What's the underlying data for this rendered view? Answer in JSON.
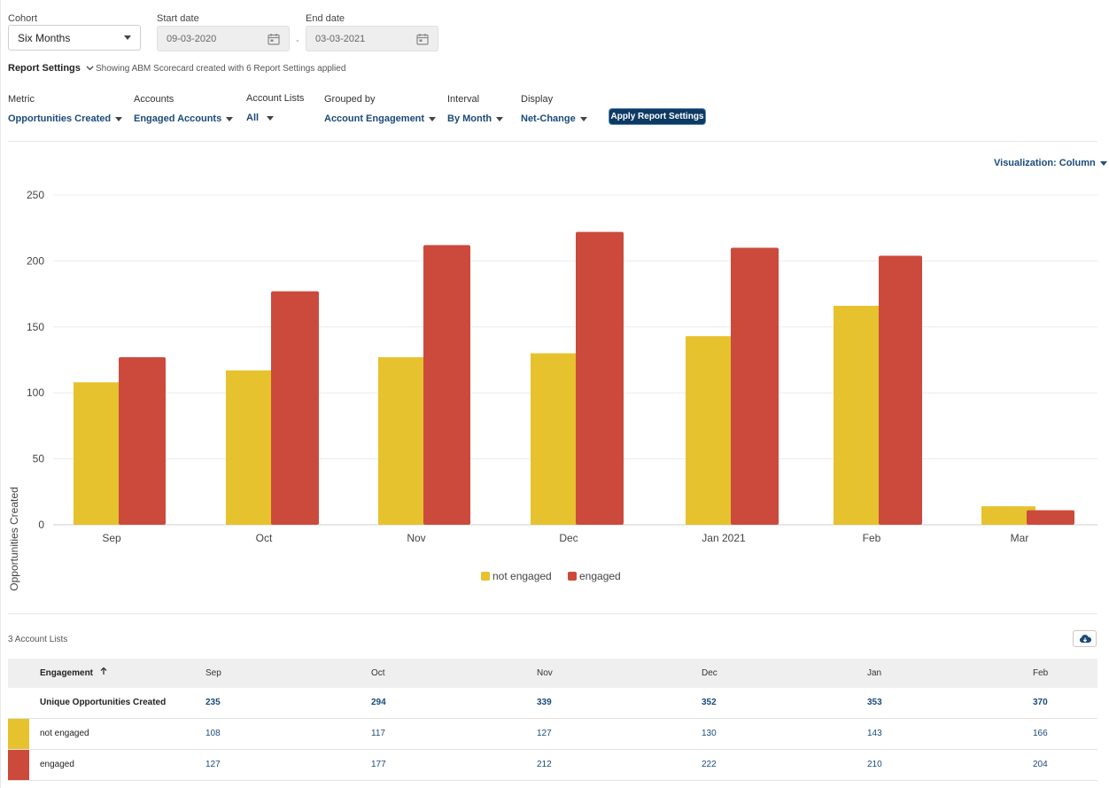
{
  "cohort": {
    "label": "Cohort",
    "value": "Six Months"
  },
  "start_date": {
    "label": "Start date",
    "value": "09-03-2020"
  },
  "end_date": {
    "label": "End date",
    "value": "03-03-2021"
  },
  "date_separator": "-",
  "report_settings": {
    "label": "Report Settings",
    "summary": "Showing ABM Scorecard created with 6 Report Settings applied"
  },
  "filters": {
    "metric": {
      "label": "Metric",
      "value": "Opportunities Created"
    },
    "accounts": {
      "label": "Accounts",
      "value": "Engaged Accounts"
    },
    "account_lists": {
      "label": "Account Lists",
      "value": "All"
    },
    "grouped_by": {
      "label": "Grouped by",
      "value": "Account Engagement"
    },
    "interval": {
      "label": "Interval",
      "value": "By Month"
    },
    "display": {
      "label": "Display",
      "value": "Net-Change"
    },
    "apply_label": "Apply Report Settings"
  },
  "visualization": {
    "label": "Visualization: Column"
  },
  "chart_data": {
    "type": "bar",
    "ylabel": "Opportunities Created",
    "xlabel": "",
    "ylim": [
      0,
      250
    ],
    "yticks": [
      0,
      50,
      100,
      150,
      200,
      250
    ],
    "categories": [
      "Sep",
      "Oct",
      "Nov",
      "Dec",
      "Jan 2021",
      "Feb",
      "Mar"
    ],
    "series": [
      {
        "name": "not engaged",
        "color": "#e6c22e",
        "values": [
          108,
          117,
          127,
          130,
          143,
          166,
          14
        ]
      },
      {
        "name": "engaged",
        "color": "#cc4a3c",
        "values": [
          127,
          177,
          212,
          222,
          210,
          204,
          11
        ]
      }
    ],
    "legend": "bottom-center"
  },
  "table": {
    "count_label": "3 Account Lists",
    "columns": [
      "Engagement",
      "Sep",
      "Oct",
      "Nov",
      "Dec",
      "Jan",
      "Feb"
    ],
    "rows": [
      {
        "label": "Unique Opportunities Created",
        "values": [
          "235",
          "294",
          "339",
          "352",
          "353",
          "370"
        ],
        "bold": true,
        "swatch": ""
      },
      {
        "label": "not engaged",
        "values": [
          "108",
          "117",
          "127",
          "130",
          "143",
          "166"
        ],
        "bold": false,
        "swatch": "#e6c22e"
      },
      {
        "label": "engaged",
        "values": [
          "127",
          "177",
          "212",
          "222",
          "210",
          "204"
        ],
        "bold": false,
        "swatch": "#cc4a3c"
      }
    ]
  },
  "icons": {
    "calendar": "calendar-icon",
    "download": "cloud-download-icon",
    "sort": "sort-arrow-up-icon"
  }
}
